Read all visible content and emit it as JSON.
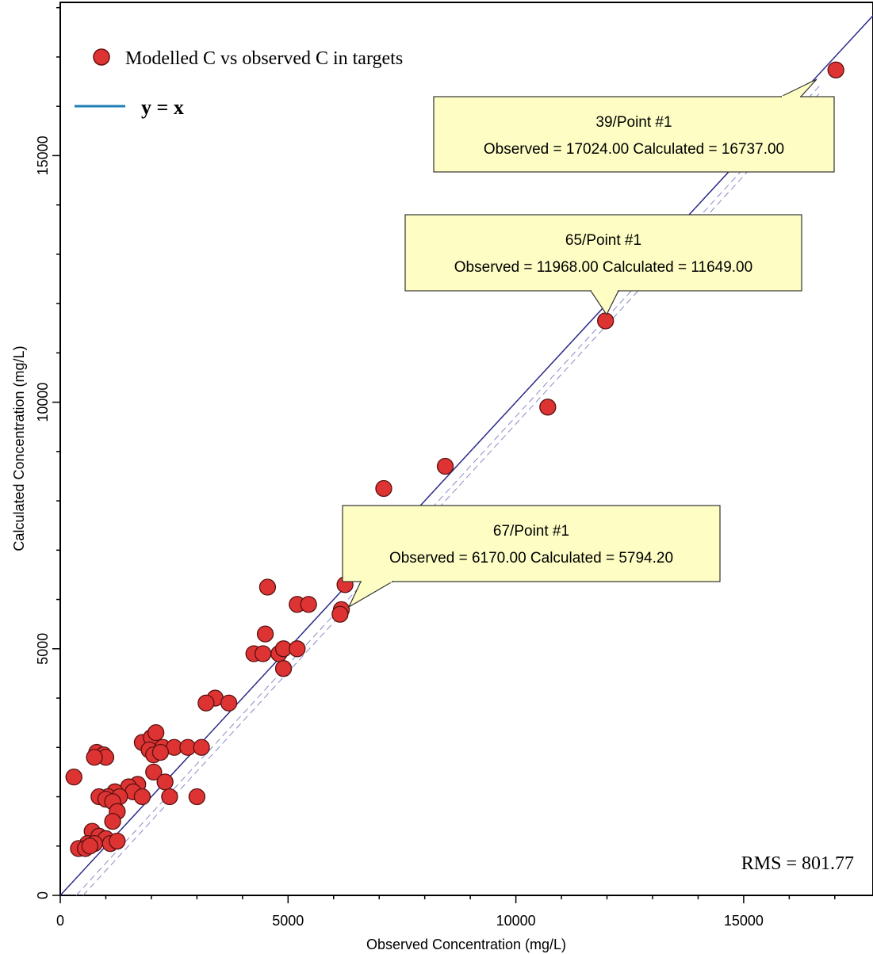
{
  "chart_data": {
    "type": "scatter",
    "xlabel": "Observed Concentration (mg/L)",
    "ylabel": "Calculated Concentration (mg/L)",
    "xlim": [
      0,
      18000
    ],
    "ylim": [
      0,
      18000
    ],
    "x_ticks": [
      0,
      5000,
      10000,
      15000
    ],
    "y_ticks": [
      0,
      5000,
      10000,
      15000
    ],
    "x_tick_labels": [
      "0",
      "5000",
      "10000",
      "15000"
    ],
    "y_tick_labels": [
      "0",
      "5000",
      "10000",
      "15000"
    ],
    "grid": false,
    "legend_position": "top-left",
    "legend": [
      {
        "label": "Modelled  C vs observed C in targets",
        "marker": "circle",
        "color": "#dd3333"
      },
      {
        "label": "y = x",
        "marker": "line",
        "color": "#1f7fb5"
      }
    ],
    "reference_line": {
      "name": "y = x",
      "color": "#2a2a8a"
    },
    "rms_text": "RMS = 801.77",
    "series": [
      {
        "name": "Modelled  C vs observed C in targets",
        "color": "#dd3333",
        "points": [
          [
            17024,
            16737
          ],
          [
            11968,
            11649
          ],
          [
            10700,
            9900
          ],
          [
            8450,
            8700
          ],
          [
            7100,
            8250
          ],
          [
            6170,
            5794.2
          ],
          [
            6140,
            5700
          ],
          [
            6250,
            6300
          ],
          [
            4550,
            6250
          ],
          [
            5200,
            5900
          ],
          [
            5450,
            5900
          ],
          [
            4500,
            5300
          ],
          [
            4250,
            4900
          ],
          [
            4450,
            4900
          ],
          [
            4800,
            4900
          ],
          [
            4900,
            5000
          ],
          [
            5200,
            5000
          ],
          [
            4900,
            4600
          ],
          [
            3400,
            4000
          ],
          [
            3200,
            3900
          ],
          [
            3700,
            3900
          ],
          [
            1800,
            3100
          ],
          [
            2000,
            3200
          ],
          [
            2100,
            3300
          ],
          [
            1950,
            2950
          ],
          [
            2050,
            2850
          ],
          [
            2250,
            3000
          ],
          [
            2500,
            3000
          ],
          [
            2800,
            3000
          ],
          [
            3100,
            3000
          ],
          [
            2200,
            2900
          ],
          [
            800,
            2900
          ],
          [
            950,
            2850
          ],
          [
            1000,
            2800
          ],
          [
            750,
            2800
          ],
          [
            300,
            2400
          ],
          [
            2050,
            2500
          ],
          [
            2300,
            2300
          ],
          [
            1700,
            2250
          ],
          [
            1500,
            2200
          ],
          [
            1600,
            2100
          ],
          [
            1200,
            2100
          ],
          [
            1050,
            2000
          ],
          [
            850,
            2000
          ],
          [
            1300,
            2000
          ],
          [
            1800,
            2000
          ],
          [
            2400,
            2000
          ],
          [
            3000,
            2000
          ],
          [
            1000,
            1950
          ],
          [
            1150,
            1900
          ],
          [
            1250,
            1700
          ],
          [
            1150,
            1500
          ],
          [
            700,
            1300
          ],
          [
            850,
            1200
          ],
          [
            1000,
            1150
          ],
          [
            600,
            1050
          ],
          [
            750,
            1050
          ],
          [
            1100,
            1050
          ],
          [
            1250,
            1100
          ],
          [
            400,
            950
          ],
          [
            550,
            950
          ],
          [
            650,
            1000
          ]
        ]
      }
    ],
    "annotations": [
      {
        "title": "39/Point #1",
        "text": "Observed = 17024.00 Calculated = 16737.00",
        "x": 17024,
        "y": 16737
      },
      {
        "title": "65/Point #1",
        "text": "Observed = 11968.00 Calculated = 11649.00",
        "x": 11968,
        "y": 11649
      },
      {
        "title": "67/Point #1",
        "text": "Observed = 6170.00 Calculated = 5794.20",
        "x": 6170,
        "y": 5794.2
      }
    ]
  }
}
